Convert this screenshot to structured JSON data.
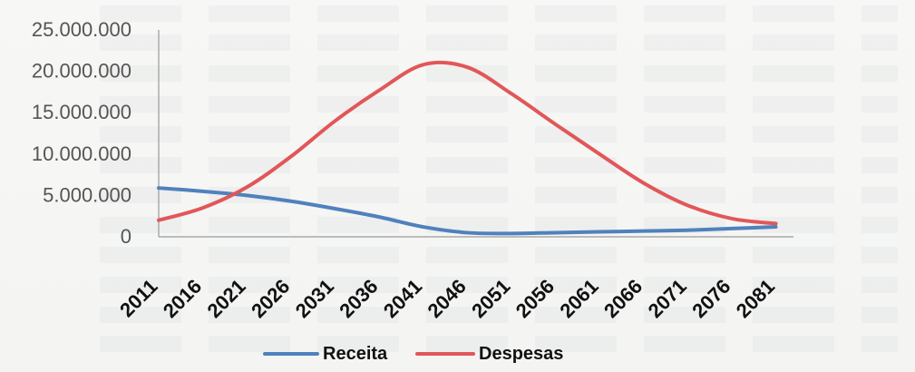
{
  "chart_data": {
    "type": "line",
    "title": "",
    "xlabel": "",
    "ylabel": "",
    "ylim": [
      0,
      25000000
    ],
    "yticks": [
      0,
      5000000,
      10000000,
      15000000,
      20000000,
      25000000
    ],
    "ytick_labels": [
      "0",
      "5.000.000",
      "10.000.000",
      "15.000.000",
      "20.000.000",
      "25.000.000"
    ],
    "x": [
      2011,
      2016,
      2021,
      2026,
      2031,
      2036,
      2041,
      2046,
      2051,
      2056,
      2061,
      2066,
      2071,
      2076,
      2081
    ],
    "xtick_labels": [
      "2011",
      "2016",
      "2021",
      "2026",
      "2031",
      "2036",
      "2041",
      "2046",
      "2051",
      "2056",
      "2061",
      "2066",
      "2071",
      "2076",
      "2081"
    ],
    "xlim": [
      2011,
      2083
    ],
    "grid": false,
    "legend_position": "bottom",
    "series": [
      {
        "name": "Receita",
        "color": "#4f81bd",
        "values": [
          5900000,
          5500000,
          5000000,
          4300000,
          3400000,
          2400000,
          1200000,
          500000,
          400000,
          500000,
          600000,
          700000,
          800000,
          1000000,
          1200000
        ]
      },
      {
        "name": "Despesas",
        "color": "#e15759",
        "values": [
          2000000,
          3500000,
          6000000,
          9700000,
          14000000,
          17700000,
          20800000,
          20500000,
          17300000,
          13600000,
          10000000,
          6500000,
          3800000,
          2200000,
          1600000
        ]
      }
    ]
  }
}
